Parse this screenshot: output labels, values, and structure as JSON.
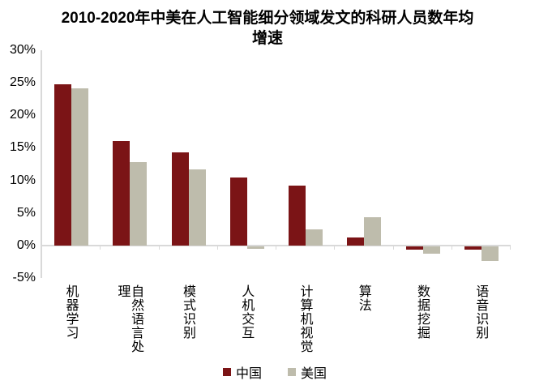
{
  "title": "2010-2020年中美在人工智能细分领域发文的科研人员数年均增速",
  "colors": {
    "china_bar": "#7B1416",
    "us_bar": "#BEBCAC",
    "axis": "#D9D9D9",
    "text": "#000000",
    "background": "#FFFFFF"
  },
  "legend": {
    "china_label": "中国",
    "us_label": "美国"
  },
  "chart_data": {
    "type": "bar",
    "title": "2010-2020年中美在人工智能细分领域发文的科研人员数年均增速",
    "categories": [
      "机器学习",
      "自然语言处理",
      "模式识别",
      "人机交互",
      "计算机视觉",
      "算法",
      "数据挖掘",
      "语音识别"
    ],
    "series": [
      {
        "key": "china",
        "name": "中国",
        "color": "#7B1416",
        "values": [
          24.8,
          16.1,
          14.3,
          10.5,
          9.2,
          1.2,
          -0.5,
          -0.5
        ]
      },
      {
        "key": "us",
        "name": "美国",
        "color": "#BEBCAC",
        "values": [
          24.2,
          12.8,
          11.7,
          -0.4,
          2.5,
          4.3,
          -1.2,
          -2.2
        ]
      }
    ],
    "xlabel": "",
    "ylabel": "",
    "ylim": [
      -5,
      30
    ],
    "ytick_step": 5,
    "ytick_labels": [
      "30%",
      "25%",
      "20%",
      "15%",
      "10%",
      "5%",
      "0%",
      "-5%"
    ],
    "unit": "percent",
    "grid": false,
    "legend_position": "bottom-center",
    "bar_orientation": "vertical",
    "x_label_orientation": "vertical"
  }
}
